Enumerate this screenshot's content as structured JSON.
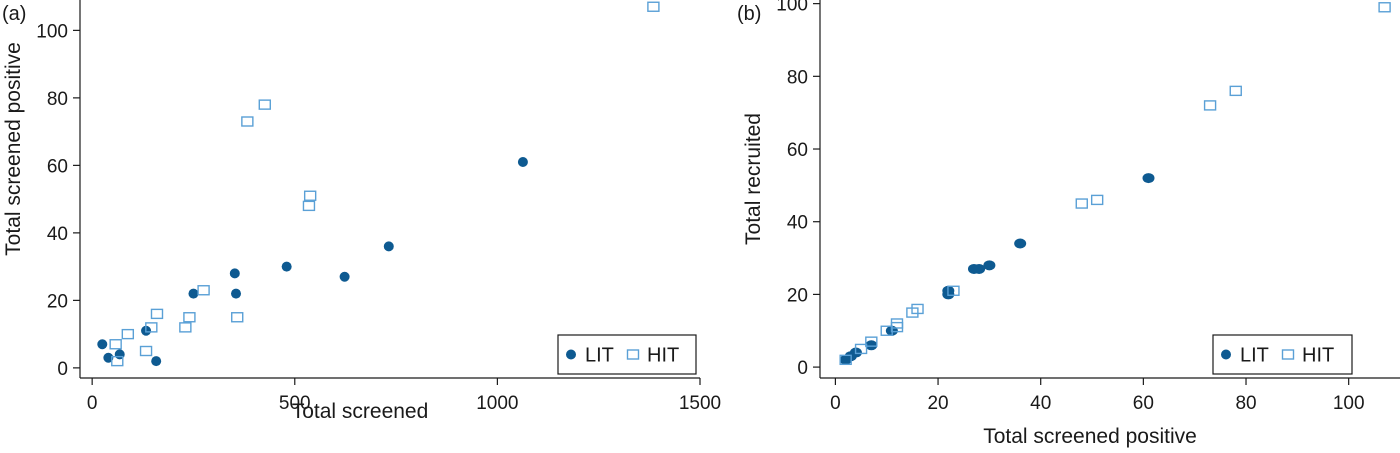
{
  "chart_data": [
    {
      "type": "scatter",
      "panel_label": "(a)",
      "xlabel": "Total screened",
      "ylabel": "Total screened positive",
      "xlim": [
        -30,
        1500
      ],
      "ylim": [
        -3,
        109
      ],
      "xticks": [
        0,
        500,
        1000,
        1500
      ],
      "yticks": [
        0,
        20,
        40,
        60,
        80,
        100
      ],
      "legend_position": "bottom-right",
      "grid": false,
      "series": [
        {
          "name": "LIT",
          "marker": "filled-circle",
          "color": "#0e5a91",
          "points": [
            [
              25,
              7
            ],
            [
              40,
              3
            ],
            [
              68,
              4
            ],
            [
              133,
              11
            ],
            [
              158,
              2
            ],
            [
              250,
              22
            ],
            [
              352,
              28
            ],
            [
              355,
              22
            ],
            [
              480,
              30
            ],
            [
              623,
              27
            ],
            [
              732,
              36
            ],
            [
              1063,
              61
            ]
          ]
        },
        {
          "name": "HIT",
          "marker": "hollow-square",
          "color": "#5aa0d6",
          "points": [
            [
              58,
              7
            ],
            [
              62,
              2
            ],
            [
              88,
              10
            ],
            [
              133,
              5
            ],
            [
              146,
              12
            ],
            [
              160,
              16
            ],
            [
              230,
              12
            ],
            [
              240,
              15
            ],
            [
              275,
              23
            ],
            [
              358,
              15
            ],
            [
              383,
              73
            ],
            [
              426,
              78
            ],
            [
              535,
              48
            ],
            [
              538,
              51
            ],
            [
              1385,
              107
            ]
          ]
        }
      ]
    },
    {
      "type": "scatter",
      "panel_label": "(b)",
      "xlabel": "Total screened positive",
      "ylabel": "Total recruited",
      "xlim": [
        -3,
        110
      ],
      "ylim": [
        -3,
        101
      ],
      "xticks": [
        0,
        20,
        40,
        60,
        80,
        100
      ],
      "yticks": [
        0,
        20,
        40,
        60,
        80,
        100
      ],
      "legend_position": "bottom-right",
      "grid": false,
      "series": [
        {
          "name": "LIT",
          "marker": "filled-circle",
          "color": "#0e5a91",
          "points": [
            [
              2,
              2
            ],
            [
              3,
              3
            ],
            [
              4,
              4
            ],
            [
              7,
              6
            ],
            [
              11,
              10
            ],
            [
              22,
              20
            ],
            [
              22,
              21
            ],
            [
              27,
              27
            ],
            [
              28,
              27
            ],
            [
              30,
              28
            ],
            [
              36,
              34
            ],
            [
              61,
              52
            ]
          ]
        },
        {
          "name": "HIT",
          "marker": "hollow-square",
          "color": "#5aa0d6",
          "points": [
            [
              2,
              2
            ],
            [
              5,
              5
            ],
            [
              7,
              7
            ],
            [
              10,
              10
            ],
            [
              12,
              11
            ],
            [
              12,
              12
            ],
            [
              15,
              15
            ],
            [
              16,
              16
            ],
            [
              23,
              21
            ],
            [
              48,
              45
            ],
            [
              51,
              46
            ],
            [
              73,
              72
            ],
            [
              78,
              76
            ],
            [
              107,
              99
            ]
          ]
        }
      ]
    }
  ]
}
